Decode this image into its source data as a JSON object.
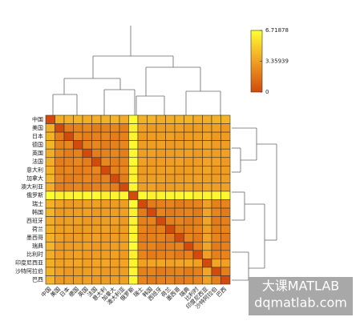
{
  "chart_data": {
    "type": "heatmap",
    "categories": [
      "中国",
      "美国",
      "日本",
      "德国",
      "英国",
      "法国",
      "意大利",
      "加拿大",
      "澳大利亚",
      "俄罗斯",
      "瑞士",
      "韩国",
      "西班牙",
      "荷兰",
      "墨西哥",
      "瑞典",
      "比利时",
      "印度尼西亚",
      "沙特阿拉伯",
      "巴西"
    ],
    "values": [
      [
        0,
        3.9,
        4.0,
        4.1,
        3.8,
        3.9,
        4.0,
        4.1,
        3.8,
        6.71878,
        4.0,
        4.1,
        3.8,
        3.9,
        4.0,
        4.1,
        3.8,
        3.9,
        4.0,
        4.1
      ],
      [
        3.9,
        0,
        2.0,
        2.2,
        2.4,
        2.0,
        2.2,
        2.4,
        2.0,
        6.2,
        3.4,
        3.1,
        3.2,
        3.3,
        3.4,
        3.1,
        3.2,
        3.4,
        3.4,
        3.1
      ],
      [
        4.0,
        2.0,
        0,
        2.4,
        2.0,
        2.2,
        2.4,
        2.0,
        2.2,
        6.3,
        3.1,
        3.2,
        3.3,
        3.4,
        3.1,
        3.2,
        3.3,
        3.5,
        3.1,
        3.2
      ],
      [
        4.1,
        2.2,
        2.4,
        0,
        2.2,
        2.4,
        2.0,
        2.2,
        2.4,
        6.4,
        3.2,
        3.3,
        3.4,
        3.1,
        3.2,
        3.3,
        3.4,
        3.6,
        3.2,
        3.3
      ],
      [
        3.8,
        2.4,
        2.0,
        2.2,
        0,
        2.0,
        2.2,
        2.4,
        2.0,
        6.5,
        3.3,
        3.4,
        3.1,
        3.2,
        3.3,
        3.4,
        3.1,
        3.4,
        3.3,
        3.4
      ],
      [
        3.9,
        2.0,
        2.2,
        2.4,
        2.0,
        0,
        2.4,
        2.0,
        2.2,
        6.6,
        3.4,
        3.1,
        3.2,
        3.3,
        3.4,
        3.1,
        3.2,
        3.5,
        3.4,
        3.1
      ],
      [
        4.0,
        2.2,
        2.4,
        2.0,
        2.2,
        2.4,
        0,
        2.2,
        2.4,
        6.2,
        3.1,
        3.2,
        3.3,
        3.4,
        3.1,
        3.2,
        3.3,
        3.6,
        3.1,
        3.2
      ],
      [
        4.1,
        2.4,
        2.0,
        2.2,
        2.4,
        2.0,
        2.2,
        0,
        2.0,
        6.3,
        3.2,
        3.3,
        3.4,
        3.1,
        3.2,
        3.3,
        3.4,
        3.4,
        3.2,
        3.3
      ],
      [
        3.8,
        2.0,
        2.2,
        2.4,
        2.0,
        2.2,
        2.4,
        2.0,
        0,
        6.4,
        3.3,
        3.4,
        3.1,
        3.2,
        3.3,
        3.4,
        3.1,
        3.5,
        3.3,
        3.4
      ],
      [
        6.71878,
        6.2,
        6.3,
        6.4,
        6.5,
        6.6,
        6.2,
        6.3,
        6.4,
        0,
        6.6,
        6.2,
        6.3,
        6.4,
        6.5,
        6.6,
        6.2,
        6.3,
        6.4,
        6.5
      ],
      [
        4.0,
        3.4,
        3.1,
        3.2,
        3.3,
        3.4,
        3.1,
        3.2,
        3.3,
        6.6,
        0,
        1.9,
        2.1,
        2.3,
        1.9,
        2.1,
        2.3,
        3.4,
        2.1,
        2.3
      ],
      [
        4.1,
        3.1,
        3.2,
        3.3,
        3.4,
        3.1,
        3.2,
        3.3,
        3.4,
        6.2,
        1.9,
        0,
        2.3,
        1.9,
        2.1,
        2.3,
        1.9,
        3.5,
        2.3,
        1.9
      ],
      [
        3.8,
        3.2,
        3.3,
        3.4,
        3.1,
        3.2,
        3.3,
        3.4,
        3.1,
        6.3,
        2.1,
        2.3,
        0,
        2.1,
        2.3,
        1.9,
        2.1,
        3.6,
        1.9,
        2.1
      ],
      [
        3.9,
        3.3,
        3.4,
        3.1,
        3.2,
        3.3,
        3.4,
        3.1,
        3.2,
        6.4,
        2.3,
        1.9,
        2.1,
        0,
        1.9,
        2.1,
        2.3,
        3.4,
        2.1,
        2.3
      ],
      [
        4.0,
        3.4,
        3.1,
        3.2,
        3.3,
        3.4,
        3.1,
        3.2,
        3.3,
        6.5,
        1.9,
        2.1,
        2.3,
        1.9,
        0,
        2.3,
        1.9,
        3.5,
        2.3,
        1.9
      ],
      [
        4.1,
        3.1,
        3.2,
        3.3,
        3.4,
        3.1,
        3.2,
        3.3,
        3.4,
        6.6,
        2.1,
        2.3,
        1.9,
        2.1,
        2.3,
        0,
        2.1,
        3.6,
        1.9,
        2.1
      ],
      [
        3.8,
        3.2,
        3.3,
        3.4,
        3.1,
        3.2,
        3.3,
        3.4,
        3.1,
        6.2,
        2.3,
        1.9,
        2.1,
        2.3,
        1.9,
        2.1,
        0,
        3.4,
        2.1,
        2.3
      ],
      [
        3.9,
        3.4,
        3.5,
        3.6,
        3.4,
        3.5,
        3.6,
        3.4,
        3.5,
        6.3,
        3.4,
        3.5,
        3.6,
        3.4,
        3.5,
        3.6,
        3.4,
        0,
        3.6,
        3.4
      ],
      [
        4.0,
        3.4,
        3.1,
        3.2,
        3.3,
        3.4,
        3.1,
        3.2,
        3.3,
        6.4,
        2.1,
        2.3,
        1.9,
        2.1,
        2.3,
        1.9,
        2.1,
        3.6,
        0,
        2.1
      ],
      [
        4.1,
        3.1,
        3.2,
        3.3,
        3.4,
        3.1,
        3.2,
        3.3,
        3.4,
        6.5,
        2.3,
        1.9,
        2.1,
        2.3,
        1.9,
        2.1,
        2.3,
        3.4,
        2.1,
        0
      ]
    ],
    "clim": [
      0,
      6.71878
    ],
    "colorbar_ticks": [
      0,
      3.35939,
      6.71878
    ],
    "colormap": [
      "#d24a0c",
      "#f0a024",
      "#ffff30"
    ],
    "watermark": [
      "大课MATLAB",
      "dqmatlab.com"
    ]
  }
}
